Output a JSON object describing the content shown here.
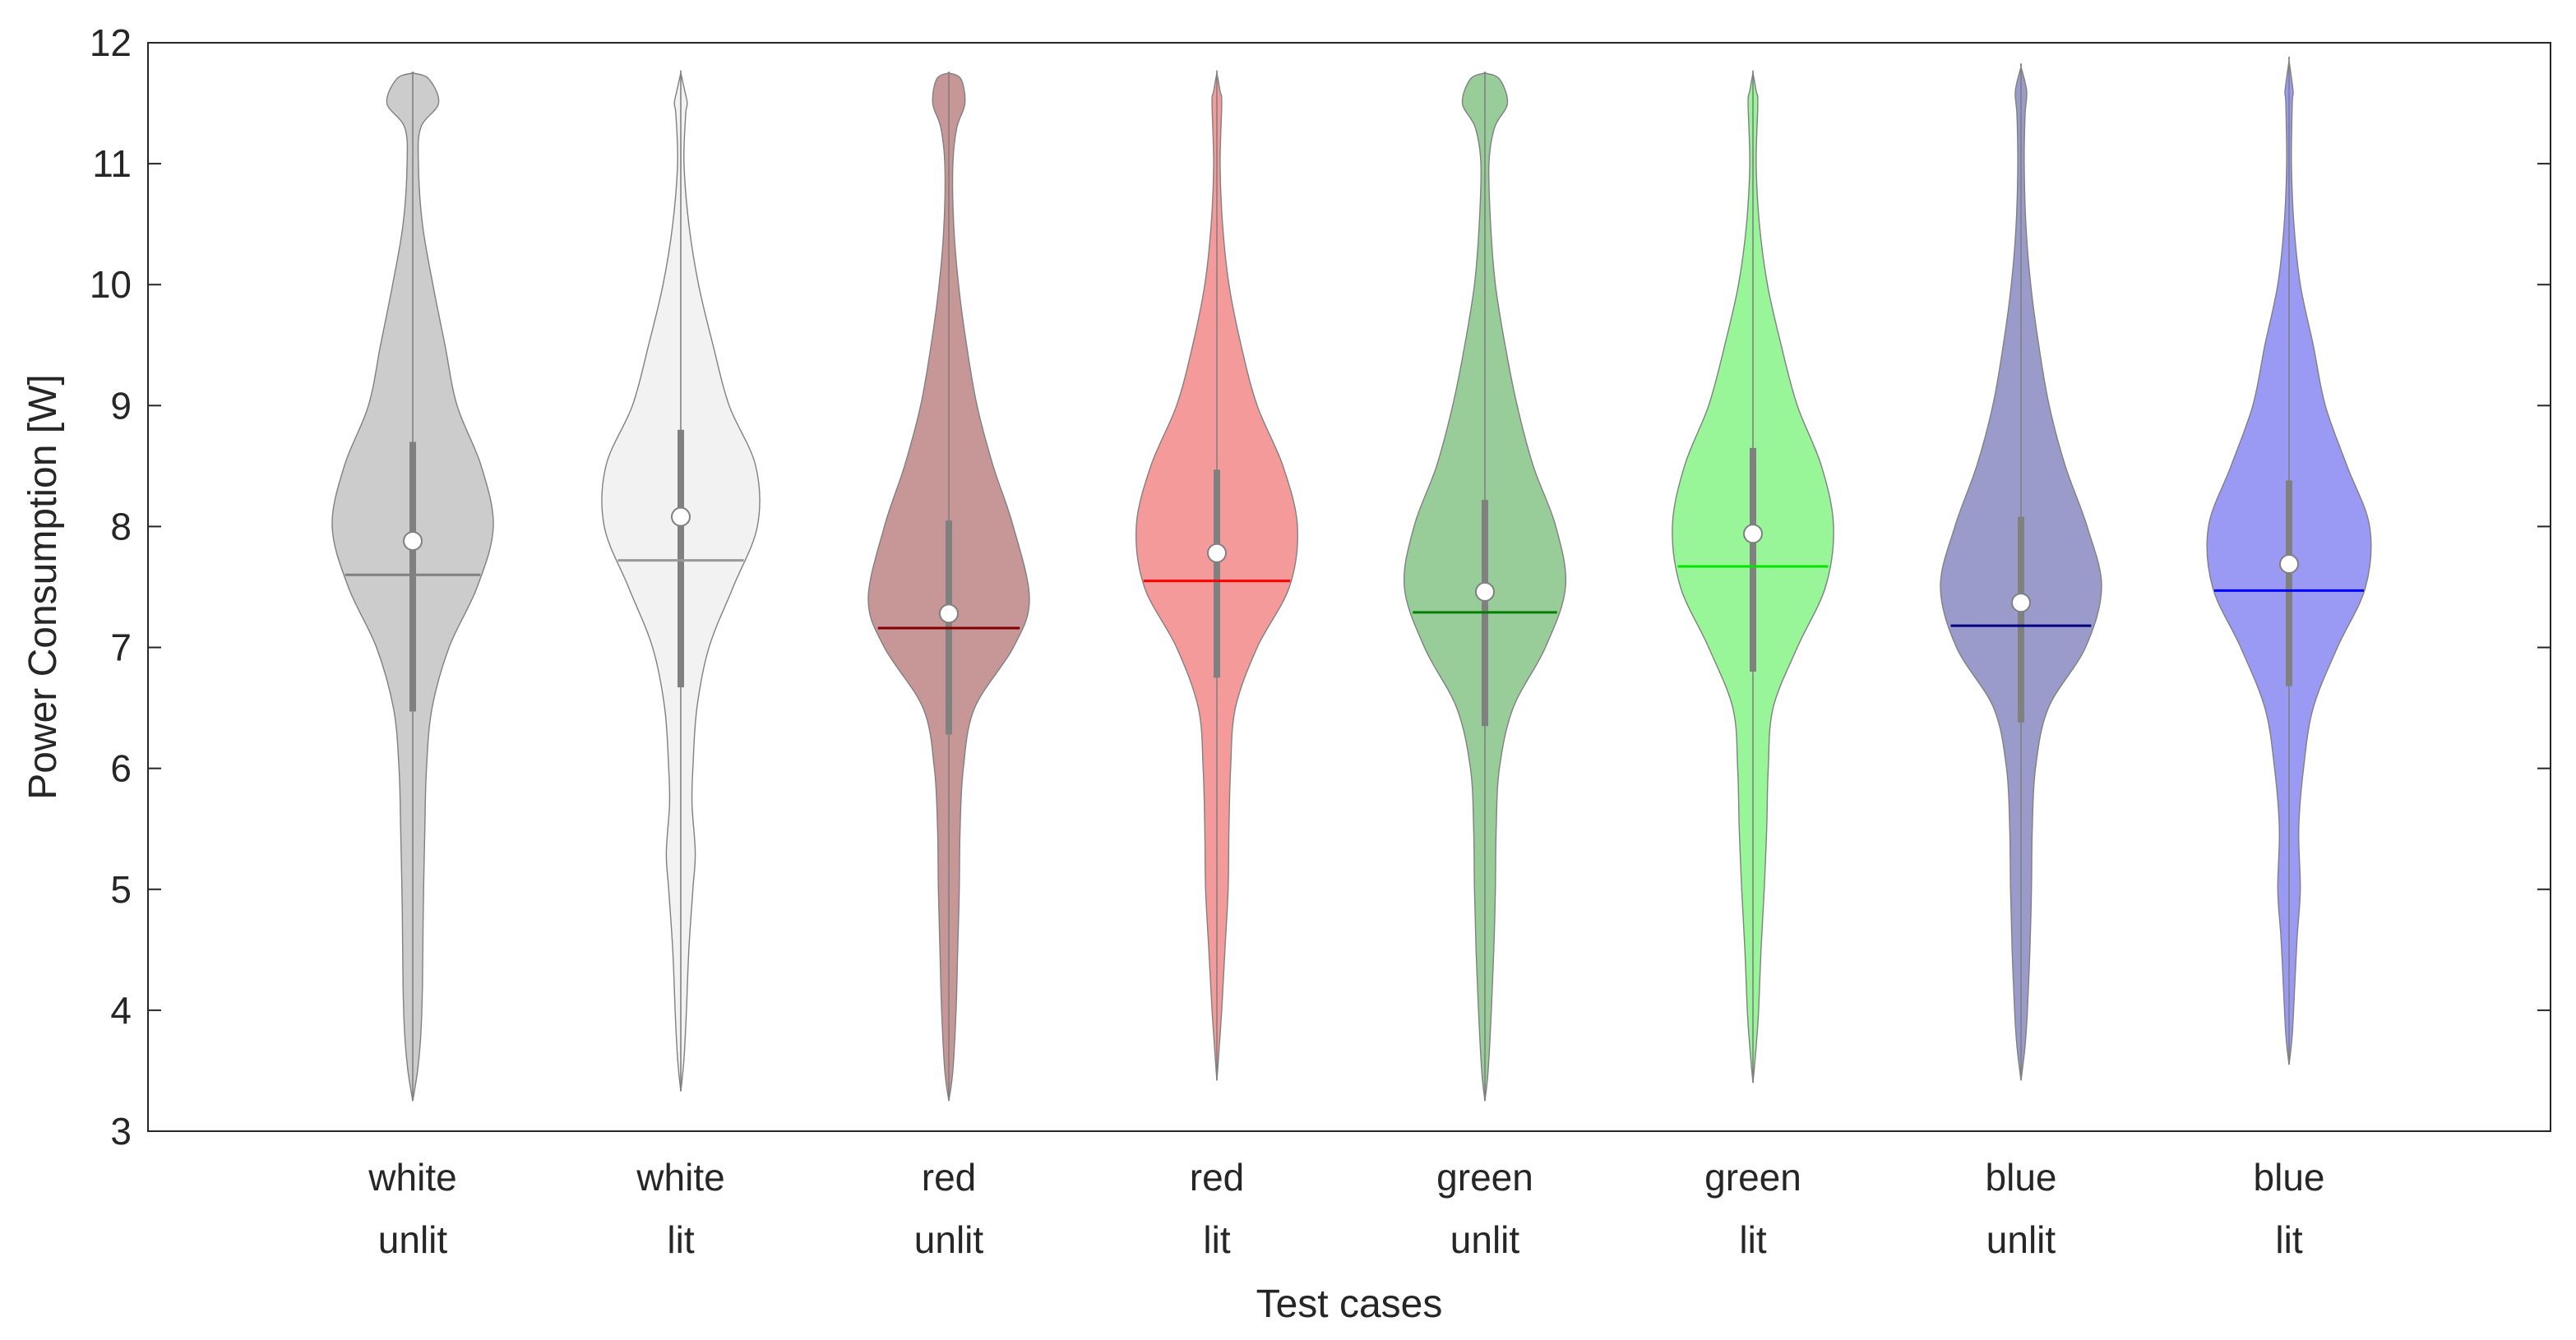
{
  "chart_data": {
    "type": "violin",
    "title": "",
    "xlabel": "Test cases",
    "ylabel": "Power Consumption [W]",
    "ylim": [
      3,
      12
    ],
    "yticks": [
      3,
      4,
      5,
      6,
      7,
      8,
      9,
      10,
      11,
      12
    ],
    "grid": false,
    "categories": [
      {
        "line1": "white",
        "line2": "unlit",
        "fill": "#cccccc",
        "edge": "#808080",
        "median_color": "#808080",
        "mean": 7.88,
        "median": 7.6,
        "q1": 6.47,
        "q3": 8.7,
        "min": 3.25,
        "max": 11.75,
        "profile": [
          [
            3.25,
            0.0
          ],
          [
            3.5,
            0.06
          ],
          [
            3.8,
            0.1
          ],
          [
            4.2,
            0.12
          ],
          [
            4.8,
            0.13
          ],
          [
            5.5,
            0.15
          ],
          [
            6.0,
            0.17
          ],
          [
            6.5,
            0.24
          ],
          [
            7.0,
            0.45
          ],
          [
            7.5,
            0.8
          ],
          [
            8.0,
            1.0
          ],
          [
            8.5,
            0.85
          ],
          [
            9.0,
            0.55
          ],
          [
            9.5,
            0.4
          ],
          [
            10.0,
            0.25
          ],
          [
            10.5,
            0.12
          ],
          [
            11.0,
            0.07
          ],
          [
            11.3,
            0.1
          ],
          [
            11.5,
            0.32
          ],
          [
            11.7,
            0.2
          ],
          [
            11.75,
            0.0
          ]
        ]
      },
      {
        "line1": "white",
        "line2": "lit",
        "fill": "#f2f2f2",
        "edge": "#808080",
        "median_color": "#999999",
        "mean": 8.08,
        "median": 7.72,
        "q1": 6.67,
        "q3": 8.8,
        "min": 3.33,
        "max": 11.75,
        "profile": [
          [
            3.33,
            0.0
          ],
          [
            3.6,
            0.04
          ],
          [
            4.0,
            0.07
          ],
          [
            4.5,
            0.1
          ],
          [
            5.0,
            0.15
          ],
          [
            5.3,
            0.18
          ],
          [
            5.7,
            0.14
          ],
          [
            6.0,
            0.15
          ],
          [
            6.5,
            0.2
          ],
          [
            7.0,
            0.35
          ],
          [
            7.5,
            0.65
          ],
          [
            8.0,
            0.95
          ],
          [
            8.5,
            0.93
          ],
          [
            9.0,
            0.6
          ],
          [
            9.5,
            0.4
          ],
          [
            10.0,
            0.22
          ],
          [
            10.5,
            0.1
          ],
          [
            11.0,
            0.04
          ],
          [
            11.4,
            0.06
          ],
          [
            11.5,
            0.08
          ],
          [
            11.6,
            0.05
          ],
          [
            11.75,
            0.0
          ]
        ]
      },
      {
        "line1": "red",
        "line2": "unlit",
        "fill": "#c79696",
        "edge": "#808080",
        "median_color": "#800000",
        "mean": 7.28,
        "median": 7.16,
        "q1": 6.28,
        "q3": 8.05,
        "min": 3.25,
        "max": 11.75,
        "profile": [
          [
            3.25,
            0.0
          ],
          [
            3.5,
            0.05
          ],
          [
            4.0,
            0.09
          ],
          [
            4.5,
            0.11
          ],
          [
            5.0,
            0.13
          ],
          [
            5.5,
            0.14
          ],
          [
            6.0,
            0.18
          ],
          [
            6.5,
            0.32
          ],
          [
            7.0,
            0.8
          ],
          [
            7.4,
            1.0
          ],
          [
            8.0,
            0.8
          ],
          [
            8.5,
            0.55
          ],
          [
            9.0,
            0.35
          ],
          [
            9.5,
            0.22
          ],
          [
            10.0,
            0.12
          ],
          [
            10.5,
            0.06
          ],
          [
            11.0,
            0.05
          ],
          [
            11.3,
            0.1
          ],
          [
            11.5,
            0.2
          ],
          [
            11.7,
            0.15
          ],
          [
            11.75,
            0.0
          ]
        ]
      },
      {
        "line1": "red",
        "line2": "lit",
        "fill": "#f59a9a",
        "edge": "#808080",
        "median_color": "#ff0000",
        "mean": 7.78,
        "median": 7.55,
        "q1": 6.75,
        "q3": 8.47,
        "min": 3.42,
        "max": 11.75,
        "profile": [
          [
            3.42,
            0.0
          ],
          [
            3.7,
            0.03
          ],
          [
            4.0,
            0.06
          ],
          [
            4.5,
            0.1
          ],
          [
            5.0,
            0.14
          ],
          [
            5.5,
            0.15
          ],
          [
            6.0,
            0.17
          ],
          [
            6.5,
            0.23
          ],
          [
            7.0,
            0.5
          ],
          [
            7.5,
            0.9
          ],
          [
            8.0,
            1.0
          ],
          [
            8.5,
            0.82
          ],
          [
            9.0,
            0.5
          ],
          [
            9.5,
            0.3
          ],
          [
            10.0,
            0.15
          ],
          [
            10.5,
            0.07
          ],
          [
            11.0,
            0.04
          ],
          [
            11.5,
            0.06
          ],
          [
            11.6,
            0.04
          ],
          [
            11.75,
            0.0
          ]
        ]
      },
      {
        "line1": "green",
        "line2": "unlit",
        "fill": "#98cc98",
        "edge": "#808080",
        "median_color": "#008000",
        "mean": 7.46,
        "median": 7.29,
        "q1": 6.35,
        "q3": 8.22,
        "min": 3.25,
        "max": 11.75,
        "profile": [
          [
            3.25,
            0.0
          ],
          [
            3.5,
            0.04
          ],
          [
            4.0,
            0.08
          ],
          [
            4.5,
            0.11
          ],
          [
            5.0,
            0.13
          ],
          [
            5.5,
            0.14
          ],
          [
            6.0,
            0.18
          ],
          [
            6.5,
            0.35
          ],
          [
            7.0,
            0.75
          ],
          [
            7.5,
            1.0
          ],
          [
            8.0,
            0.88
          ],
          [
            8.5,
            0.6
          ],
          [
            9.0,
            0.4
          ],
          [
            9.5,
            0.25
          ],
          [
            10.0,
            0.13
          ],
          [
            10.5,
            0.07
          ],
          [
            11.0,
            0.05
          ],
          [
            11.3,
            0.12
          ],
          [
            11.5,
            0.28
          ],
          [
            11.7,
            0.18
          ],
          [
            11.75,
            0.0
          ]
        ]
      },
      {
        "line1": "green",
        "line2": "lit",
        "fill": "#98f598",
        "edge": "#808080",
        "median_color": "#00e600",
        "mean": 7.94,
        "median": 7.67,
        "q1": 6.8,
        "q3": 8.65,
        "min": 3.4,
        "max": 11.75,
        "profile": [
          [
            3.4,
            0.0
          ],
          [
            3.7,
            0.04
          ],
          [
            4.0,
            0.07
          ],
          [
            4.5,
            0.1
          ],
          [
            5.0,
            0.14
          ],
          [
            5.5,
            0.17
          ],
          [
            6.0,
            0.19
          ],
          [
            6.5,
            0.25
          ],
          [
            7.0,
            0.55
          ],
          [
            7.5,
            0.9
          ],
          [
            8.0,
            1.0
          ],
          [
            8.5,
            0.85
          ],
          [
            9.0,
            0.55
          ],
          [
            9.5,
            0.35
          ],
          [
            10.0,
            0.18
          ],
          [
            10.5,
            0.08
          ],
          [
            11.0,
            0.04
          ],
          [
            11.5,
            0.06
          ],
          [
            11.6,
            0.04
          ],
          [
            11.75,
            0.0
          ]
        ]
      },
      {
        "line1": "blue",
        "line2": "unlit",
        "fill": "#9a9acb",
        "edge": "#808080",
        "median_color": "#000080",
        "mean": 7.37,
        "median": 7.18,
        "q1": 6.38,
        "q3": 8.08,
        "min": 3.42,
        "max": 11.8,
        "profile": [
          [
            3.42,
            0.0
          ],
          [
            3.7,
            0.05
          ],
          [
            4.0,
            0.08
          ],
          [
            4.5,
            0.11
          ],
          [
            5.0,
            0.13
          ],
          [
            5.5,
            0.14
          ],
          [
            6.0,
            0.18
          ],
          [
            6.5,
            0.34
          ],
          [
            7.0,
            0.8
          ],
          [
            7.5,
            1.0
          ],
          [
            8.0,
            0.82
          ],
          [
            8.5,
            0.55
          ],
          [
            9.0,
            0.35
          ],
          [
            9.5,
            0.22
          ],
          [
            10.0,
            0.12
          ],
          [
            10.5,
            0.06
          ],
          [
            11.0,
            0.04
          ],
          [
            11.4,
            0.05
          ],
          [
            11.6,
            0.07
          ],
          [
            11.8,
            0.0
          ]
        ]
      },
      {
        "line1": "blue",
        "line2": "lit",
        "fill": "#9a9af5",
        "edge": "#808080",
        "median_color": "#0000ff",
        "mean": 7.69,
        "median": 7.47,
        "q1": 6.68,
        "q3": 8.38,
        "min": 3.55,
        "max": 11.85,
        "profile": [
          [
            3.55,
            0.0
          ],
          [
            3.8,
            0.04
          ],
          [
            4.2,
            0.07
          ],
          [
            4.6,
            0.1
          ],
          [
            5.0,
            0.14
          ],
          [
            5.5,
            0.12
          ],
          [
            6.0,
            0.18
          ],
          [
            6.5,
            0.3
          ],
          [
            7.0,
            0.6
          ],
          [
            7.5,
            0.95
          ],
          [
            8.0,
            1.0
          ],
          [
            8.5,
            0.72
          ],
          [
            9.0,
            0.45
          ],
          [
            9.5,
            0.3
          ],
          [
            10.0,
            0.14
          ],
          [
            10.5,
            0.06
          ],
          [
            11.0,
            0.03
          ],
          [
            11.5,
            0.04
          ],
          [
            11.6,
            0.05
          ],
          [
            11.85,
            0.0
          ]
        ]
      }
    ]
  }
}
